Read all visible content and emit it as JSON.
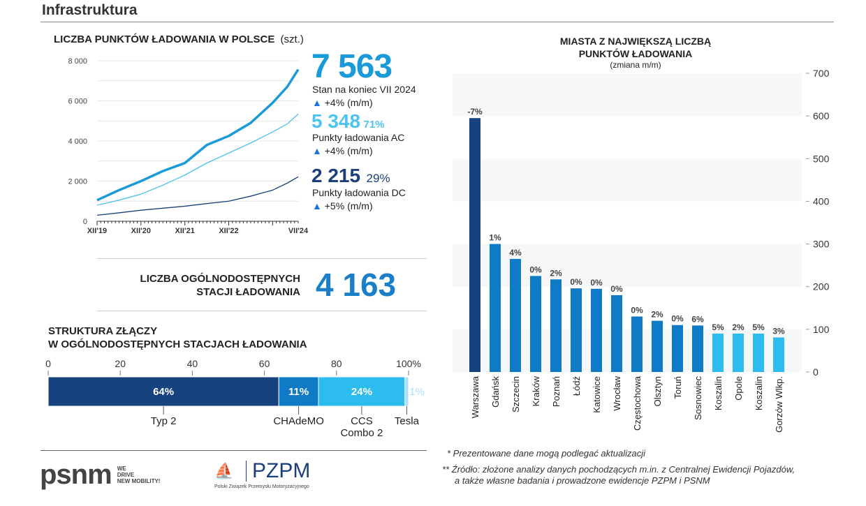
{
  "header": {
    "title": "Infrastruktura"
  },
  "colors": {
    "total": "#1a9ad8",
    "ac": "#4fc3ec",
    "dc": "#1b3f7a",
    "bar_dark": "#16437e",
    "bar_mid": "#0f7ac5",
    "bar_light": "#2cbcee",
    "seg_typ2": "#16437e",
    "seg_chademo": "#0f7ac5",
    "seg_ccs": "#2cbcee",
    "seg_tesla": "#a9e0f7"
  },
  "points": {
    "title": "LICZBA PUNKTÓW ŁADOWANIA W POLSCE",
    "unit": "(szt.)",
    "total_value": "7 563",
    "total_label": "Stan na koniec VII 2024",
    "total_change": "+4%",
    "total_change_unit": "(m/m)",
    "ac_value": "5 348",
    "ac_share": "71%",
    "ac_label": "Punkty ładowania AC",
    "ac_change": "+4%",
    "ac_change_unit": "(m/m)",
    "dc_value": "2 215",
    "dc_share": "29%",
    "dc_label": "Punkty ładowania DC",
    "dc_change": "+5%",
    "dc_change_unit": "(m/m)"
  },
  "stations": {
    "label_line1": "LICZBA OGÓLNODOSTĘPNYCH",
    "label_line2": "STACJI ŁADOWANIA",
    "value": "4 163"
  },
  "connectors": {
    "title_line1": "STRUKTURA ZŁĄCZY",
    "title_line2": "W OGÓLNODOSTĘPNYCH STACJACH ŁADOWANIA"
  },
  "notes": {
    "note1": "* Prezentowane dane mogą podlegać aktualizacji",
    "note2_line1": "** Źródło: złożone analizy danych pochodzących m.in. z Centralnej Ewidencji Pojazdów,",
    "note2_line2": "a także własne badania i prowadzone ewidencje PZPM i PSNM"
  },
  "logos": {
    "psnm": "psnm",
    "psnm_tag1": "WE",
    "psnm_tag2": "DRIVE",
    "psnm_tag3": "NEW MOBILITY!",
    "pzpm": "PZPM",
    "pzpm_sub": "Polski Związek Przemysłu Motoryzacyjnego"
  },
  "chart_data": [
    {
      "type": "line",
      "title": "LICZBA PUNKTÓW ŁADOWANIA W POLSCE",
      "ylabel": "(szt.)",
      "ylim": [
        0,
        8000
      ],
      "yticks": [
        "0",
        "2 000",
        "4 000",
        "6 000",
        "8 000"
      ],
      "yticks_values": [
        0,
        2000,
        4000,
        6000,
        8000
      ],
      "xticks": [
        "XII'19",
        "XII'20",
        "XII'21",
        "XII'22",
        "VII'24"
      ],
      "xticks_values": [
        "2019-12",
        "2020-12",
        "2021-12",
        "2022-12",
        "2024-07"
      ],
      "x": [
        "2019-12",
        "2020-06",
        "2020-12",
        "2021-06",
        "2021-12",
        "2022-06",
        "2022-12",
        "2023-06",
        "2023-12",
        "2024-04",
        "2024-07"
      ],
      "series": [
        {
          "key": "total",
          "values": [
            1050,
            1550,
            2000,
            2500,
            2900,
            3800,
            4250,
            4900,
            5900,
            6700,
            7563
          ]
        },
        {
          "key": "ac",
          "values": [
            800,
            1050,
            1350,
            1800,
            2300,
            2900,
            3400,
            3900,
            4450,
            4850,
            5348
          ]
        },
        {
          "key": "dc",
          "values": [
            300,
            420,
            550,
            650,
            750,
            880,
            1000,
            1250,
            1550,
            1900,
            2215
          ]
        }
      ],
      "grid": true
    },
    {
      "type": "bar",
      "title": "MIASTA Z NAJWIĘKSZĄ LICZBĄ",
      "title_line2": "PUNKTÓW ŁADOWANIA",
      "subtitle": "(zmiana m/m)",
      "ylim": [
        0,
        700
      ],
      "yticks": [
        "0",
        "100",
        "200",
        "300",
        "400",
        "500",
        "600",
        "700"
      ],
      "categories": [
        "Warszawa",
        "Gdańsk",
        "Szczecin",
        "Kraków",
        "Poznań",
        "Łódź",
        "Katowice",
        "Wrocław",
        "Częstochowa",
        "Olsztyn",
        "Toruń",
        "Sosnowiec",
        "Koszalin",
        "Opole",
        "Koszalin",
        "Gorzów Wlkp."
      ],
      "values": [
        595,
        300,
        265,
        225,
        217,
        196,
        195,
        180,
        130,
        120,
        110,
        109,
        90,
        90,
        90,
        81
      ],
      "labels": [
        "-7%",
        "1%",
        "4%",
        "0%",
        "2%",
        "0%",
        "0%",
        "0%",
        "0%",
        "2%",
        "0%",
        "6%",
        "5%",
        "2%",
        "5%",
        "3%"
      ],
      "shade": [
        "dark",
        "mid",
        "mid",
        "mid",
        "mid",
        "mid",
        "mid",
        "mid",
        "mid",
        "mid",
        "mid",
        "mid",
        "light",
        "light",
        "light",
        "light"
      ]
    },
    {
      "type": "bar",
      "orientation": "stacked-horizontal",
      "xticks": [
        "0",
        "20",
        "40",
        "60",
        "80",
        "100%"
      ],
      "xlim": [
        0,
        100
      ],
      "categories": [
        "Typ 2",
        "CHAdeMO",
        "CCS Combo 2",
        "Tesla"
      ],
      "category_lines": [
        [
          "Typ 2"
        ],
        [
          "CHAdeMO"
        ],
        [
          "CCS",
          "Combo 2"
        ],
        [
          "Tesla"
        ]
      ],
      "values": [
        64,
        11,
        24,
        1
      ],
      "labels": [
        "64%",
        "11%",
        "24%",
        "1%"
      ],
      "keys": [
        "seg_typ2",
        "seg_chademo",
        "seg_ccs",
        "seg_tesla"
      ]
    }
  ]
}
